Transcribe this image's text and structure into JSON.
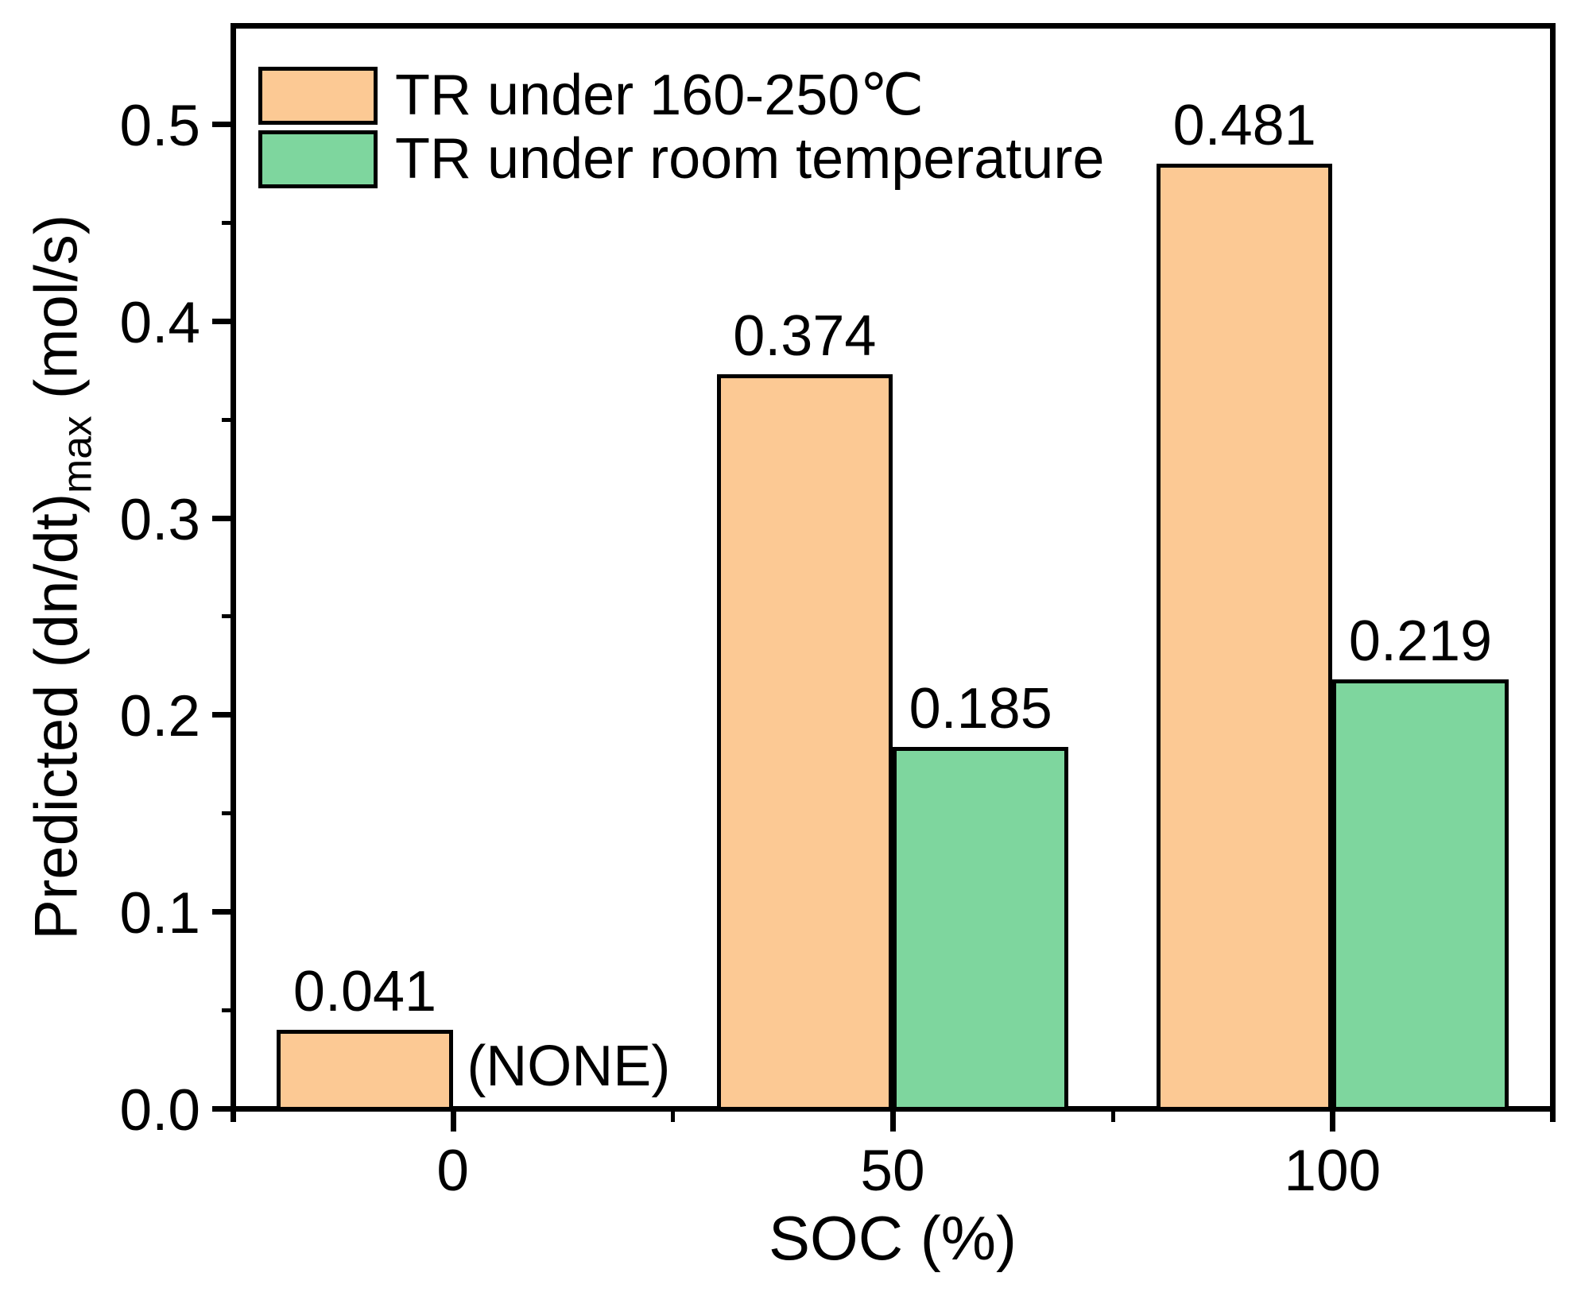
{
  "chart_data": {
    "type": "bar",
    "title": "",
    "xlabel": "SOC (%)",
    "ylabel_pre": "Predicted (dn/dt)",
    "ylabel_sub": "max",
    "ylabel_post": " (mol/s)",
    "categories": [
      0,
      50,
      100
    ],
    "x_tick_labels": [
      "0",
      "50",
      "100"
    ],
    "series": [
      {
        "name": "TR under 160-250℃",
        "color": "#FCC994",
        "values": [
          0.041,
          0.374,
          0.481
        ],
        "value_labels": [
          "0.041",
          "0.374",
          "0.481"
        ]
      },
      {
        "name": "TR under room temperature",
        "color": "#7ED69E",
        "values": [
          null,
          0.185,
          0.219
        ],
        "value_labels": [
          "(NONE)",
          "0.185",
          "0.219"
        ]
      }
    ],
    "missing_value_label": "(NONE)",
    "xlim": [
      -25,
      125
    ],
    "ylim": [
      0,
      0.55
    ],
    "bar_width_units": 20,
    "y_major_ticks": [
      0.0,
      0.1,
      0.2,
      0.3,
      0.4,
      0.5
    ],
    "y_major_tick_labels": [
      "0.0",
      "0.1",
      "0.2",
      "0.3",
      "0.4",
      "0.5"
    ],
    "y_minor_ticks": [
      0.05,
      0.15,
      0.25,
      0.35,
      0.45
    ],
    "x_minor_ticks": [
      25,
      75
    ],
    "x_edge_ticks": [
      -25,
      125
    ],
    "grid": false,
    "legend_position": "top-left",
    "axis_color": "#000000",
    "bar_edge_color": "#000000",
    "background_color": "#FFFFFF"
  }
}
